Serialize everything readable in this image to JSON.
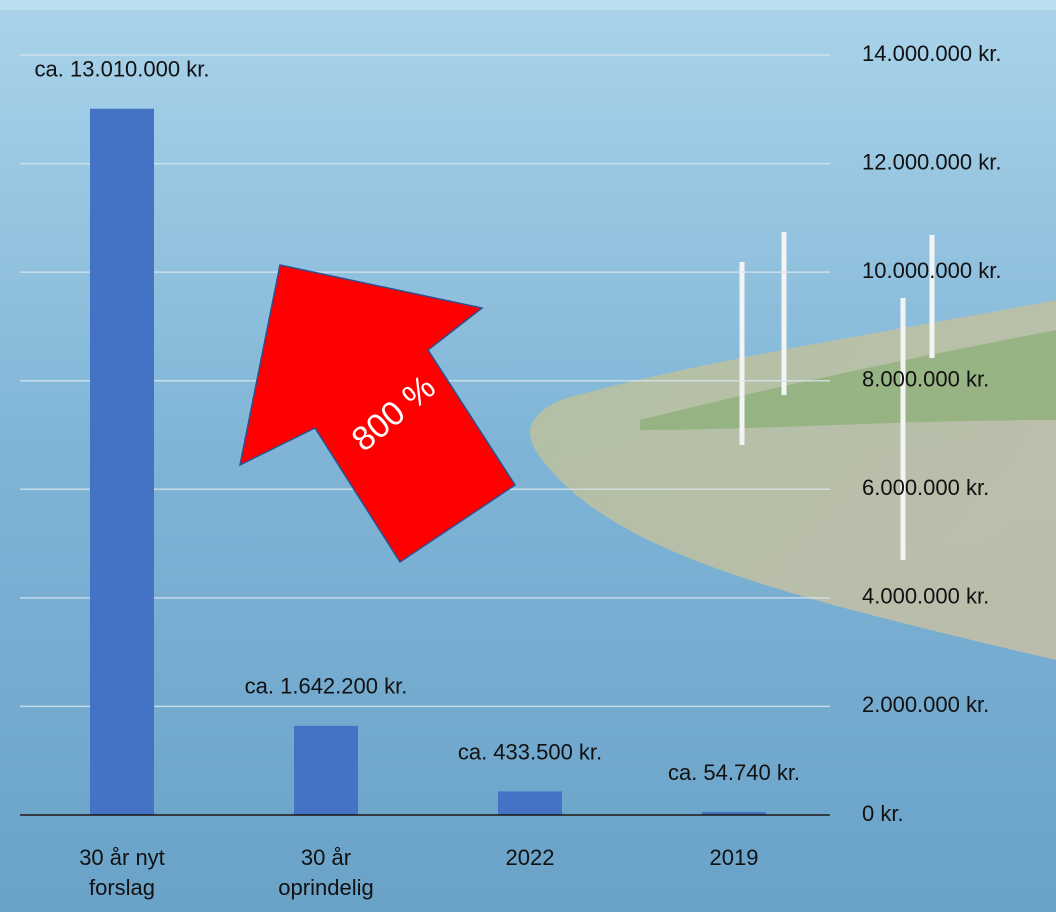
{
  "chart_data": {
    "type": "bar",
    "annotation": "800 %",
    "categories": [
      "30 år nyt forslag",
      "30 år oprindelig",
      "2022",
      "2019"
    ],
    "values": [
      13010000,
      1642200,
      433500,
      54740
    ],
    "value_labels": [
      "ca. 13.010.000 kr.",
      "ca. 1.642.200 kr.",
      "ca. 433.500 kr.",
      "ca. 54.740 kr."
    ],
    "color": "#4472c4",
    "ylim": [
      0,
      14000000
    ],
    "yticks": [
      {
        "value": 0,
        "label": "0 kr."
      },
      {
        "value": 2000000,
        "label": "2.000.000 kr."
      },
      {
        "value": 4000000,
        "label": "4.000.000 kr."
      },
      {
        "value": 6000000,
        "label": "6.000.000 kr."
      },
      {
        "value": 8000000,
        "label": "8.000.000 kr."
      },
      {
        "value": 10000000,
        "label": "10.000.000 kr."
      },
      {
        "value": 12000000,
        "label": "12.000.000 kr."
      },
      {
        "value": 14000000,
        "label": "14.000.000 kr."
      }
    ],
    "grid": true
  }
}
